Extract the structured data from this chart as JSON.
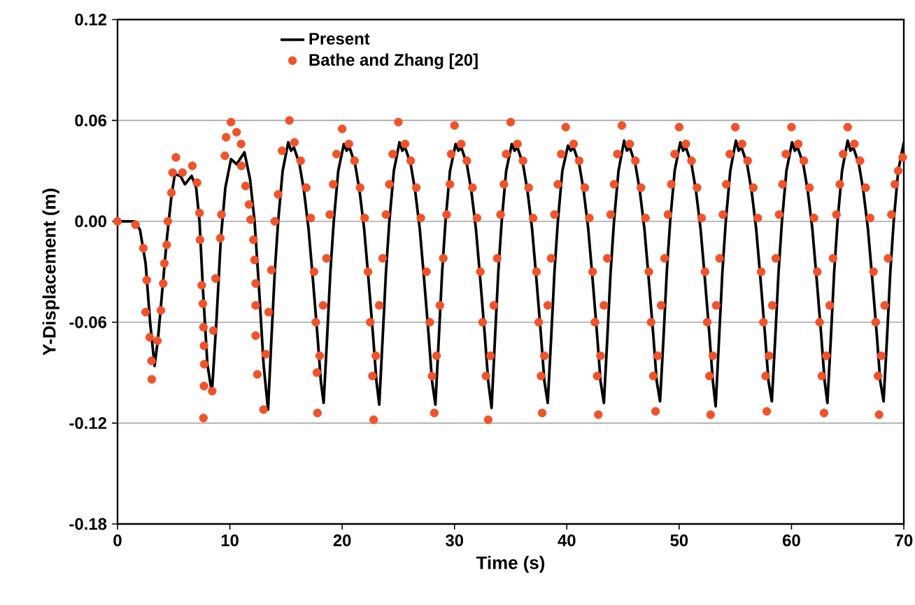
{
  "chart_data": {
    "type": "line",
    "xlabel": "Time (s)",
    "ylabel": "Y-Displacement (m)",
    "xlim": [
      0,
      70
    ],
    "xticks": [
      0,
      10,
      20,
      30,
      40,
      50,
      60,
      70
    ],
    "ylim": [
      -0.18,
      0.12
    ],
    "yticks": [
      {
        "value": -0.18,
        "label": "-0.18"
      },
      {
        "value": -0.12,
        "label": "-0.12"
      },
      {
        "value": -0.06,
        "label": "-0.06"
      },
      {
        "value": 0,
        "label": "0.00"
      },
      {
        "value": 0.06,
        "label": "0.06"
      },
      {
        "value": 0.12,
        "label": "0.12"
      }
    ],
    "grid": "y",
    "legend": "top left",
    "series": [
      {
        "name": "Present",
        "color": "#000000",
        "line_style": "solid",
        "x": [
          0,
          1.5,
          2.0,
          2.5,
          2.9,
          3.3,
          3.6,
          4.0,
          4.4,
          4.8,
          5.1,
          5.6,
          6.0,
          6.6,
          7.0,
          7.3,
          7.6,
          8.0,
          8.4,
          8.8,
          9.2,
          9.6,
          10.1,
          10.6,
          11.3,
          11.8,
          12.2,
          12.6,
          13.0,
          13.4,
          13.7,
          14.0,
          14.3,
          14.7,
          15.2,
          15.45,
          15.7,
          16.2,
          16.6,
          17.0,
          17.4,
          17.8,
          18.1,
          18.35,
          18.65,
          18.95,
          19.25,
          19.65,
          20.15,
          20.4,
          20.65,
          21.15,
          21.55,
          21.95,
          22.35,
          22.75,
          23.05,
          23.3,
          23.6,
          23.9,
          24.2,
          24.6,
          25.1,
          25.35,
          25.6,
          26.1,
          26.5,
          26.9,
          27.3,
          27.7,
          28.0,
          28.3,
          28.6,
          28.9,
          29.2,
          29.6,
          30.1,
          30.35,
          30.6,
          31.1,
          31.5,
          31.9,
          32.3,
          32.7,
          33.0,
          33.3,
          33.6,
          33.9,
          34.2,
          34.6,
          35.1,
          35.35,
          35.6,
          36.1,
          36.5,
          36.9,
          37.3,
          37.7,
          38.0,
          38.3,
          38.6,
          38.9,
          39.2,
          39.6,
          40.1,
          40.35,
          40.6,
          41.1,
          41.5,
          41.9,
          42.3,
          42.7,
          43.0,
          43.3,
          43.6,
          43.9,
          44.2,
          44.6,
          45.1,
          45.35,
          45.6,
          46.1,
          46.5,
          46.9,
          47.3,
          47.7,
          48.0,
          48.3,
          48.6,
          48.9,
          49.2,
          49.6,
          50.1,
          50.35,
          50.6,
          51.1,
          51.5,
          51.9,
          52.3,
          52.7,
          53.0,
          53.25,
          53.55,
          53.85,
          54.15,
          54.55,
          55.05,
          55.3,
          55.55,
          56.05,
          56.45,
          56.85,
          57.25,
          57.65,
          57.95,
          58.25,
          58.55,
          58.85,
          59.15,
          59.55,
          60.05,
          60.3,
          60.55,
          61.05,
          61.45,
          61.85,
          62.25,
          62.65,
          62.95,
          63.2,
          63.5,
          63.8,
          64.1,
          64.5,
          65.0,
          65.25,
          65.5,
          66.0,
          66.4,
          66.8,
          67.2,
          67.6,
          67.9,
          68.2,
          68.5,
          68.8,
          69.1,
          69.5,
          70.0
        ],
        "values": [
          0,
          0,
          -0.005,
          -0.025,
          -0.06,
          -0.086,
          -0.07,
          -0.04,
          -0.01,
          0.015,
          0.028,
          0.027,
          0.022,
          0.027,
          0.02,
          0,
          -0.04,
          -0.085,
          -0.102,
          -0.06,
          -0.01,
          0.02,
          0.037,
          0.034,
          0.041,
          0.025,
          0,
          -0.04,
          -0.085,
          -0.112,
          -0.07,
          -0.03,
          0,
          0.03,
          0.047,
          0.042,
          0.044,
          0.034,
          0.018,
          -0.004,
          -0.035,
          -0.068,
          -0.095,
          -0.108,
          -0.07,
          -0.03,
          0,
          0.03,
          0.046,
          0.042,
          0.044,
          0.034,
          0.018,
          -0.004,
          -0.035,
          -0.068,
          -0.095,
          -0.109,
          -0.07,
          -0.03,
          0,
          0.03,
          0.047,
          0.042,
          0.044,
          0.034,
          0.018,
          -0.004,
          -0.035,
          -0.068,
          -0.095,
          -0.109,
          -0.07,
          -0.03,
          0,
          0.03,
          0.046,
          0.042,
          0.044,
          0.034,
          0.018,
          -0.004,
          -0.035,
          -0.068,
          -0.095,
          -0.111,
          -0.07,
          -0.03,
          0,
          0.03,
          0.046,
          0.042,
          0.044,
          0.034,
          0.018,
          -0.004,
          -0.035,
          -0.068,
          -0.095,
          -0.108,
          -0.07,
          -0.03,
          0,
          0.03,
          0.045,
          0.042,
          0.044,
          0.034,
          0.018,
          -0.004,
          -0.035,
          -0.068,
          -0.095,
          -0.108,
          -0.07,
          -0.03,
          0,
          0.03,
          0.048,
          0.042,
          0.044,
          0.034,
          0.018,
          -0.004,
          -0.035,
          -0.068,
          -0.095,
          -0.107,
          -0.07,
          -0.03,
          0,
          0.03,
          0.047,
          0.042,
          0.044,
          0.034,
          0.018,
          -0.004,
          -0.035,
          -0.068,
          -0.095,
          -0.11,
          -0.07,
          -0.03,
          0,
          0.03,
          0.048,
          0.042,
          0.044,
          0.034,
          0.018,
          -0.004,
          -0.035,
          -0.068,
          -0.095,
          -0.107,
          -0.07,
          -0.03,
          0,
          0.03,
          0.047,
          0.042,
          0.044,
          0.034,
          0.018,
          -0.004,
          -0.035,
          -0.068,
          -0.095,
          -0.108,
          -0.07,
          -0.03,
          0,
          0.03,
          0.048,
          0.042,
          0.044,
          0.034,
          0.018,
          -0.004,
          -0.035,
          -0.068,
          -0.095,
          -0.107,
          -0.07,
          -0.03,
          0,
          0.03,
          0.047
        ]
      },
      {
        "name": "Bathe and Zhang [20]",
        "type": "scatter",
        "color": "#f0522a",
        "marker": "circle",
        "x": [
          0,
          1.6,
          2.3,
          2.5,
          2.6,
          2.87,
          3.03,
          3.05,
          3.55,
          3.86,
          4.07,
          4.17,
          4.38,
          4.48,
          4.8,
          4.9,
          5.2,
          5.78,
          6.66,
          7.08,
          7.3,
          7.34,
          7.5,
          7.6,
          7.65,
          7.7,
          7.72,
          7.7,
          7.65,
          8.43,
          8.53,
          8.73,
          9.15,
          9.25,
          9.56,
          9.67,
          10.1,
          10.6,
          11.0,
          11.02,
          11.4,
          11.7,
          11.85,
          12.1,
          12.2,
          12.3,
          12.3,
          12.3,
          12.45,
          13.0,
          13.2,
          13.45,
          13.7,
          14.0,
          14.3,
          14.65,
          15.3,
          15.75,
          16.3,
          16.8,
          17.2,
          17.5,
          17.65,
          17.75,
          17.8,
          18.0,
          18.3,
          18.6,
          18.9,
          19.2,
          19.5,
          20.0,
          20.6,
          21.1,
          21.6,
          22.0,
          22.3,
          22.5,
          22.7,
          22.8,
          23.0,
          23.3,
          23.6,
          23.9,
          24.2,
          24.5,
          25.0,
          25.6,
          26.1,
          26.6,
          27.0,
          27.5,
          27.8,
          28.0,
          28.2,
          28.4,
          28.7,
          29.0,
          29.3,
          29.6,
          29.7,
          30.0,
          30.6,
          31.1,
          31.6,
          32.0,
          32.3,
          32.5,
          32.8,
          33.0,
          33.2,
          33.5,
          33.8,
          34.1,
          34.4,
          34.6,
          35.0,
          35.6,
          36.1,
          36.6,
          37.0,
          37.3,
          37.5,
          37.7,
          37.8,
          38.0,
          38.3,
          38.6,
          38.9,
          39.2,
          39.5,
          39.9,
          40.6,
          41.1,
          41.6,
          42.0,
          42.3,
          42.5,
          42.7,
          42.8,
          43.0,
          43.3,
          43.6,
          43.9,
          44.2,
          44.5,
          44.9,
          45.6,
          46.1,
          46.6,
          47.0,
          47.3,
          47.5,
          47.7,
          47.9,
          48.1,
          48.4,
          48.7,
          49.0,
          49.3,
          49.6,
          50.0,
          50.6,
          51.1,
          51.6,
          52.0,
          52.3,
          52.5,
          52.7,
          52.8,
          53.0,
          53.3,
          53.6,
          53.9,
          54.2,
          54.5,
          55.0,
          55.6,
          56.1,
          56.6,
          57.0,
          57.3,
          57.5,
          57.7,
          57.8,
          58.0,
          58.3,
          58.6,
          58.9,
          59.2,
          59.5,
          60.0,
          60.6,
          61.1,
          61.6,
          62.0,
          62.3,
          62.5,
          62.7,
          62.9,
          63.1,
          63.4,
          63.7,
          64.0,
          64.3,
          64.6,
          65.0,
          65.6,
          66.1,
          66.6,
          67.0,
          67.3,
          67.5,
          67.7,
          67.8,
          68.0,
          68.3,
          68.6,
          68.9,
          69.2,
          69.5,
          69.9
        ],
        "values": [
          0,
          -0.002,
          -0.016,
          -0.054,
          -0.035,
          -0.069,
          -0.083,
          -0.094,
          -0.071,
          -0.053,
          -0.037,
          -0.025,
          -0.014,
          0.0,
          0.017,
          0.029,
          0.038,
          0.029,
          0.033,
          0.023,
          0.005,
          -0.011,
          -0.038,
          -0.049,
          -0.063,
          -0.074,
          -0.085,
          -0.098,
          -0.117,
          -0.101,
          -0.065,
          -0.034,
          -0.01,
          0.004,
          0.039,
          0.05,
          0.059,
          0.053,
          0.046,
          0.033,
          0.021,
          0.01,
          0.001,
          -0.011,
          -0.023,
          -0.037,
          -0.05,
          -0.068,
          -0.091,
          -0.112,
          -0.079,
          -0.054,
          -0.029,
          0.0,
          0.016,
          0.042,
          0.06,
          0.047,
          0.036,
          0.02,
          0.002,
          -0.03,
          -0.06,
          -0.09,
          -0.114,
          -0.08,
          -0.05,
          -0.022,
          0.004,
          0.022,
          0.04,
          0.055,
          0.046,
          0.036,
          0.02,
          0.002,
          -0.03,
          -0.06,
          -0.092,
          -0.118,
          -0.08,
          -0.05,
          -0.022,
          0.004,
          0.022,
          0.04,
          0.059,
          0.046,
          0.036,
          0.02,
          0.002,
          -0.03,
          -0.06,
          -0.092,
          -0.114,
          -0.08,
          -0.05,
          -0.022,
          0.004,
          0.022,
          0.04,
          0.057,
          0.046,
          0.036,
          0.02,
          0.002,
          -0.03,
          -0.06,
          -0.092,
          -0.118,
          -0.08,
          -0.05,
          -0.022,
          0.004,
          0.022,
          0.04,
          0.059,
          0.046,
          0.036,
          0.02,
          0.002,
          -0.03,
          -0.06,
          -0.092,
          -0.114,
          -0.08,
          -0.05,
          -0.022,
          0.004,
          0.022,
          0.04,
          0.056,
          0.046,
          0.036,
          0.02,
          0.002,
          -0.03,
          -0.06,
          -0.092,
          -0.115,
          -0.08,
          -0.05,
          -0.022,
          0.004,
          0.022,
          0.04,
          0.057,
          0.046,
          0.036,
          0.02,
          0.002,
          -0.03,
          -0.06,
          -0.092,
          -0.113,
          -0.08,
          -0.05,
          -0.022,
          0.004,
          0.022,
          0.04,
          0.056,
          0.046,
          0.036,
          0.02,
          0.002,
          -0.03,
          -0.06,
          -0.092,
          -0.115,
          -0.08,
          -0.05,
          -0.022,
          0.004,
          0.022,
          0.04,
          0.056,
          0.046,
          0.036,
          0.02,
          0.002,
          -0.03,
          -0.06,
          -0.092,
          -0.113,
          -0.08,
          -0.05,
          -0.022,
          0.004,
          0.022,
          0.04,
          0.056,
          0.046,
          0.036,
          0.02,
          0.002,
          -0.03,
          -0.06,
          -0.092,
          -0.114,
          -0.08,
          -0.05,
          -0.022,
          0.004,
          0.022,
          0.04,
          0.056,
          0.046,
          0.036,
          0.02,
          0.002,
          -0.03,
          -0.06,
          -0.092,
          -0.115,
          -0.08,
          -0.05,
          -0.022,
          0.004,
          0.022,
          0.03,
          0.038
        ]
      }
    ]
  }
}
